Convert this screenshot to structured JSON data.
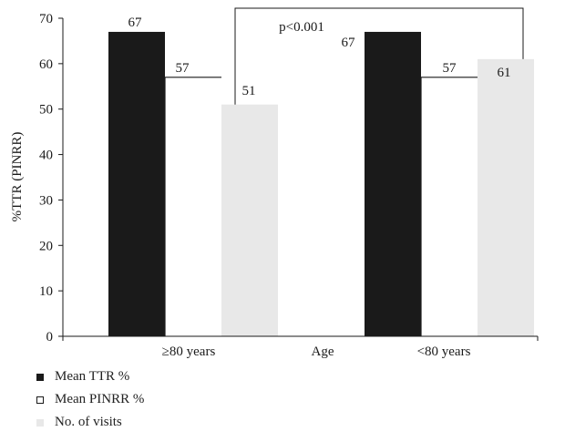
{
  "chart_data": {
    "type": "bar",
    "categories": [
      "≥80 years",
      "<80 years"
    ],
    "series": [
      {
        "name": "Mean TTR %",
        "values": [
          67,
          67
        ],
        "color": "#1a1a1a"
      },
      {
        "name": "Mean PINRR %",
        "values": [
          57,
          57
        ],
        "color": "#ffffff"
      },
      {
        "name": "No. of visits",
        "values": [
          51,
          61
        ],
        "color": "#e8e8e8"
      }
    ],
    "xlabel": "Age",
    "ylabel": "%TTR (PINRR)",
    "ylim": [
      0,
      70
    ],
    "yticks": [
      0,
      10,
      20,
      30,
      40,
      50,
      60,
      70
    ],
    "annotation": "p<0.001",
    "legend_position": "bottom-left",
    "grid": false
  }
}
